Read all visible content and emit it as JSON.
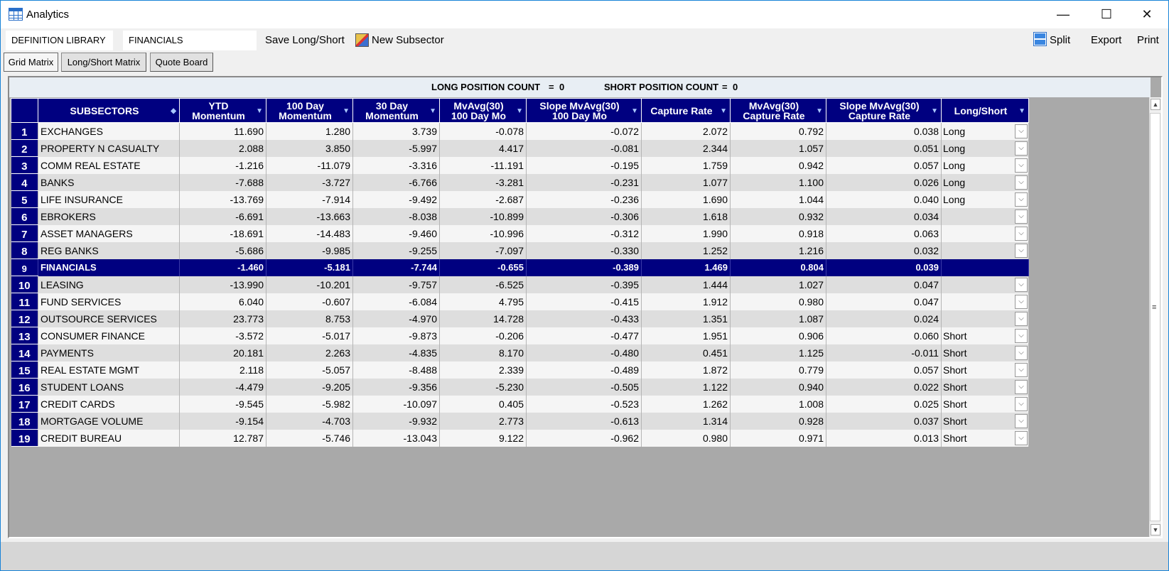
{
  "window": {
    "title": "Analytics",
    "controls": {
      "minimize": "—",
      "maximize": "☐",
      "close": "✕"
    }
  },
  "toolbar": {
    "definition_library": "DEFINITION LIBRARY",
    "sector": "FINANCIALS",
    "save_long_short": "Save Long/Short",
    "new_subsector": "New Subsector",
    "split": "Split",
    "export": "Export",
    "print": "Print"
  },
  "tabs": [
    "Grid Matrix",
    "Long/Short Matrix",
    "Quote Board"
  ],
  "counts": {
    "long_label": "LONG POSITION COUNT",
    "long_value": "0",
    "short_label": "SHORT POSITION COUNT",
    "short_value": "0"
  },
  "columns": [
    {
      "line1": "SUBSECTORS",
      "line2": ""
    },
    {
      "line1": "YTD",
      "line2": "Momentum"
    },
    {
      "line1": "100 Day",
      "line2": "Momentum"
    },
    {
      "line1": "30 Day",
      "line2": "Momentum"
    },
    {
      "line1": "MvAvg(30)",
      "line2": "100 Day Mo"
    },
    {
      "line1": "Slope MvAvg(30)",
      "line2": "100 Day Mo"
    },
    {
      "line1": "Capture Rate",
      "line2": ""
    },
    {
      "line1": "MvAvg(30)",
      "line2": "Capture Rate"
    },
    {
      "line1": "Slope MvAvg(30)",
      "line2": "Capture Rate"
    },
    {
      "line1": "Long/Short",
      "line2": ""
    }
  ],
  "selected_row": 9,
  "rows": [
    {
      "n": "1",
      "name": "EXCHANGES",
      "v": [
        "11.690",
        "1.280",
        "3.739",
        "-0.078",
        "-0.072",
        "2.072",
        "0.792",
        "0.038"
      ],
      "ls": "Long",
      "dd": true
    },
    {
      "n": "2",
      "name": "PROPERTY N CASUALTY",
      "v": [
        "2.088",
        "3.850",
        "-5.997",
        "4.417",
        "-0.081",
        "2.344",
        "1.057",
        "0.051"
      ],
      "ls": "Long",
      "dd": true
    },
    {
      "n": "3",
      "name": "COMM REAL ESTATE",
      "v": [
        "-1.216",
        "-11.079",
        "-3.316",
        "-11.191",
        "-0.195",
        "1.759",
        "0.942",
        "0.057"
      ],
      "ls": "Long",
      "dd": true
    },
    {
      "n": "4",
      "name": "BANKS",
      "v": [
        "-7.688",
        "-3.727",
        "-6.766",
        "-3.281",
        "-0.231",
        "1.077",
        "1.100",
        "0.026"
      ],
      "ls": "Long",
      "dd": true
    },
    {
      "n": "5",
      "name": "LIFE INSURANCE",
      "v": [
        "-13.769",
        "-7.914",
        "-9.492",
        "-2.687",
        "-0.236",
        "1.690",
        "1.044",
        "0.040"
      ],
      "ls": "Long",
      "dd": true
    },
    {
      "n": "6",
      "name": "EBROKERS",
      "v": [
        "-6.691",
        "-13.663",
        "-8.038",
        "-10.899",
        "-0.306",
        "1.618",
        "0.932",
        "0.034"
      ],
      "ls": "",
      "dd": true
    },
    {
      "n": "7",
      "name": "ASSET MANAGERS",
      "v": [
        "-18.691",
        "-14.483",
        "-9.460",
        "-10.996",
        "-0.312",
        "1.990",
        "0.918",
        "0.063"
      ],
      "ls": "",
      "dd": true
    },
    {
      "n": "8",
      "name": "REG BANKS",
      "v": [
        "-5.686",
        "-9.985",
        "-9.255",
        "-7.097",
        "-0.330",
        "1.252",
        "1.216",
        "0.032"
      ],
      "ls": "",
      "dd": true
    },
    {
      "n": "9",
      "name": "FINANCIALS",
      "v": [
        "-1.460",
        "-5.181",
        "-7.744",
        "-0.655",
        "-0.389",
        "1.469",
        "0.804",
        "0.039"
      ],
      "ls": "",
      "dd": false
    },
    {
      "n": "10",
      "name": "LEASING",
      "v": [
        "-13.990",
        "-10.201",
        "-9.757",
        "-6.525",
        "-0.395",
        "1.444",
        "1.027",
        "0.047"
      ],
      "ls": "",
      "dd": true
    },
    {
      "n": "11",
      "name": "FUND SERVICES",
      "v": [
        "6.040",
        "-0.607",
        "-6.084",
        "4.795",
        "-0.415",
        "1.912",
        "0.980",
        "0.047"
      ],
      "ls": "",
      "dd": true
    },
    {
      "n": "12",
      "name": "OUTSOURCE SERVICES",
      "v": [
        "23.773",
        "8.753",
        "-4.970",
        "14.728",
        "-0.433",
        "1.351",
        "1.087",
        "0.024"
      ],
      "ls": "",
      "dd": true
    },
    {
      "n": "13",
      "name": "CONSUMER FINANCE",
      "v": [
        "-3.572",
        "-5.017",
        "-9.873",
        "-0.206",
        "-0.477",
        "1.951",
        "0.906",
        "0.060"
      ],
      "ls": "Short",
      "dd": true
    },
    {
      "n": "14",
      "name": "PAYMENTS",
      "v": [
        "20.181",
        "2.263",
        "-4.835",
        "8.170",
        "-0.480",
        "0.451",
        "1.125",
        "-0.011"
      ],
      "ls": "Short",
      "dd": true
    },
    {
      "n": "15",
      "name": "REAL ESTATE MGMT",
      "v": [
        "2.118",
        "-5.057",
        "-8.488",
        "2.339",
        "-0.489",
        "1.872",
        "0.779",
        "0.057"
      ],
      "ls": "Short",
      "dd": true
    },
    {
      "n": "16",
      "name": "STUDENT LOANS",
      "v": [
        "-4.479",
        "-9.205",
        "-9.356",
        "-5.230",
        "-0.505",
        "1.122",
        "0.940",
        "0.022"
      ],
      "ls": "Short",
      "dd": true
    },
    {
      "n": "17",
      "name": "CREDIT CARDS",
      "v": [
        "-9.545",
        "-5.982",
        "-10.097",
        "0.405",
        "-0.523",
        "1.262",
        "1.008",
        "0.025"
      ],
      "ls": "Short",
      "dd": true
    },
    {
      "n": "18",
      "name": "MORTGAGE VOLUME",
      "v": [
        "-9.154",
        "-4.703",
        "-9.932",
        "2.773",
        "-0.613",
        "1.314",
        "0.928",
        "0.037"
      ],
      "ls": "Short",
      "dd": true
    },
    {
      "n": "19",
      "name": "CREDIT BUREAU",
      "v": [
        "12.787",
        "-5.746",
        "-13.043",
        "9.122",
        "-0.962",
        "0.980",
        "0.971",
        "0.013"
      ],
      "ls": "Short",
      "dd": true
    }
  ]
}
